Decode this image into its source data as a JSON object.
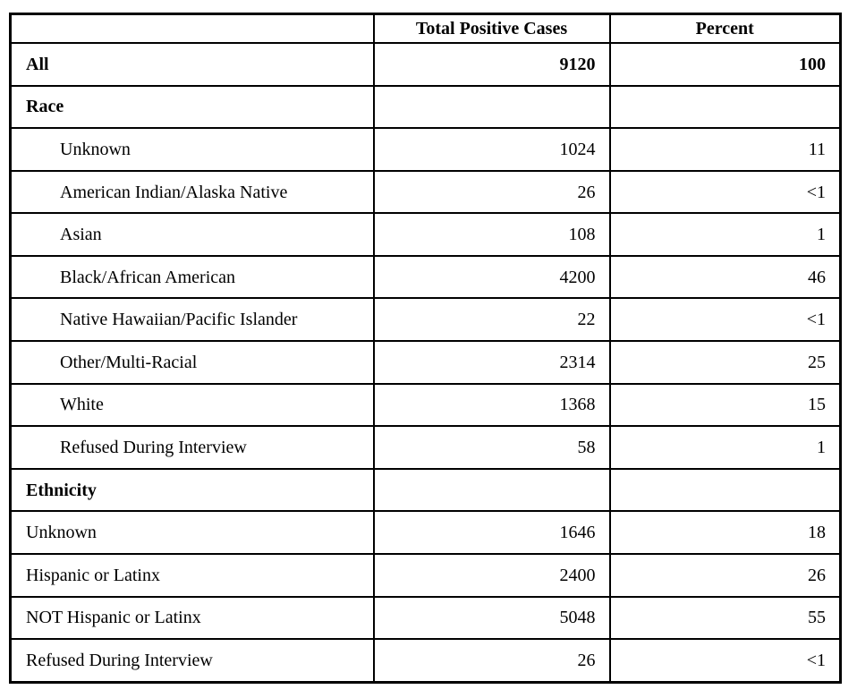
{
  "chart_data": {
    "type": "table",
    "columns": [
      "",
      "Total Positive Cases",
      "Percent"
    ],
    "rows": [
      {
        "label": "All",
        "total_positive_cases": "9120",
        "percent": "100",
        "bold": true,
        "indent": false
      },
      {
        "label": "Race",
        "total_positive_cases": "",
        "percent": "",
        "bold": true,
        "indent": false
      },
      {
        "label": "Unknown",
        "total_positive_cases": "1024",
        "percent": "11",
        "bold": false,
        "indent": true
      },
      {
        "label": "American Indian/Alaska Native",
        "total_positive_cases": "26",
        "percent": "<1",
        "bold": false,
        "indent": true
      },
      {
        "label": "Asian",
        "total_positive_cases": "108",
        "percent": "1",
        "bold": false,
        "indent": true
      },
      {
        "label": "Black/African American",
        "total_positive_cases": "4200",
        "percent": "46",
        "bold": false,
        "indent": true
      },
      {
        "label": "Native Hawaiian/Pacific Islander",
        "total_positive_cases": "22",
        "percent": "<1",
        "bold": false,
        "indent": true
      },
      {
        "label": "Other/Multi-Racial",
        "total_positive_cases": "2314",
        "percent": "25",
        "bold": false,
        "indent": true
      },
      {
        "label": "White",
        "total_positive_cases": "1368",
        "percent": "15",
        "bold": false,
        "indent": true
      },
      {
        "label": "Refused During Interview",
        "total_positive_cases": "58",
        "percent": "1",
        "bold": false,
        "indent": true
      },
      {
        "label": "Ethnicity",
        "total_positive_cases": "",
        "percent": "",
        "bold": true,
        "indent": false
      },
      {
        "label": "Unknown",
        "total_positive_cases": "1646",
        "percent": "18",
        "bold": false,
        "indent": false
      },
      {
        "label": "Hispanic or Latinx",
        "total_positive_cases": "2400",
        "percent": "26",
        "bold": false,
        "indent": false
      },
      {
        "label": "NOT Hispanic or Latinx",
        "total_positive_cases": "5048",
        "percent": "55",
        "bold": false,
        "indent": false
      },
      {
        "label": "Refused During Interview",
        "total_positive_cases": "26",
        "percent": "<1",
        "bold": false,
        "indent": false
      }
    ]
  },
  "colors": {
    "border": "#000000",
    "text": "#000000",
    "background": "#ffffff"
  }
}
